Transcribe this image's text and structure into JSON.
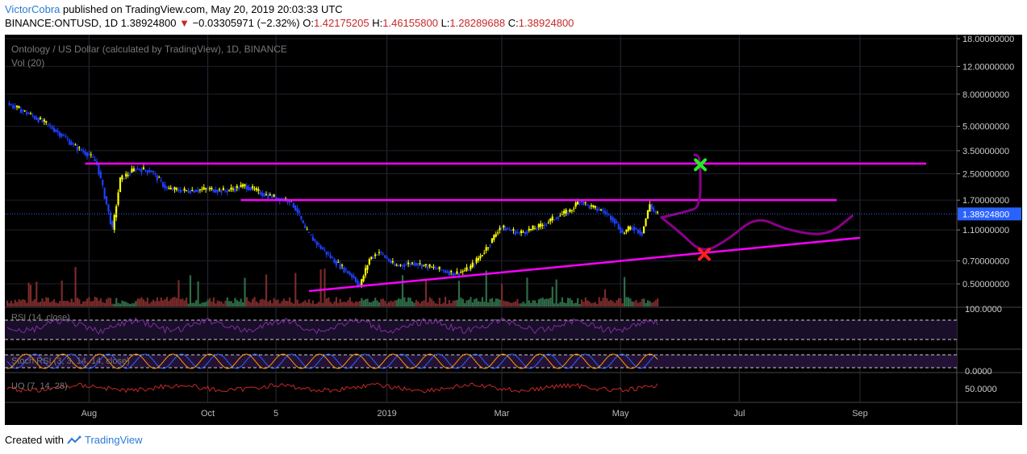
{
  "header": {
    "author": "VictorCobra",
    "published_text": "published on TradingView.com, May 20, 2019 20:03:33 UTC",
    "symbol_line": "BINANCE:ONTUSD, 1D",
    "last_price": "1.38924800",
    "change_icon": "down-triangle-icon",
    "change_text": "−0.03305971 (−2.32%)",
    "o_label": "O:",
    "o_value": "1.42175205",
    "h_label": "H:",
    "h_value": "1.46155800",
    "l_label": "L:",
    "l_value": "1.28289688",
    "c_label": "C:",
    "c_value": "1.38924800"
  },
  "footer": {
    "created_with": "Created with",
    "brand": "TradingView",
    "brand_icon": "tradingview-logo-icon"
  },
  "colors": {
    "background": "#000000",
    "bull": "#ffff00",
    "bear": "#1e40ff",
    "trendline": "#ff00ff",
    "projection": "#8b008b",
    "target_x": "#22ee22",
    "stop_x": "#ff2020",
    "rsi": "#7b2f9b",
    "uo": "#c62828",
    "price_badge": "#2962ff"
  },
  "chart_data": {
    "type": "candlestick",
    "title": "Ontology / US Dollar (calculated by TradingView), 1D, BINANCE",
    "subtitle": "Vol (20)",
    "y_scale": "log",
    "price_axis_labels": [
      "18.00000000",
      "12.00000000",
      "8.00000000",
      "5.00000000",
      "3.50000000",
      "2.50000000",
      "1.70000000",
      "1.10000000",
      "0.70000000",
      "0.50000000"
    ],
    "price_axis_values": [
      18.0,
      12.0,
      8.0,
      5.0,
      3.5,
      2.5,
      1.7,
      1.1,
      0.7,
      0.5
    ],
    "last_price_label": "1.38924800",
    "x_axis_labels": [
      "Aug",
      "Oct",
      "5",
      "2019",
      "Mar",
      "May",
      "Jul",
      "Sep"
    ],
    "x_axis_dates": [
      "2018-08-01",
      "2018-10-01",
      "2018-11-05",
      "2019-01-01",
      "2019-03-01",
      "2019-05-01",
      "2019-07-01",
      "2019-09-01"
    ],
    "price_path": [
      [
        "2018-06-20",
        7.0
      ],
      [
        "2018-07-01",
        6.0
      ],
      [
        "2018-07-10",
        5.2
      ],
      [
        "2018-07-18",
        4.4
      ],
      [
        "2018-07-25",
        3.7
      ],
      [
        "2018-08-01",
        3.3
      ],
      [
        "2018-08-05",
        2.9
      ],
      [
        "2018-08-10",
        1.6
      ],
      [
        "2018-08-13",
        1.1
      ],
      [
        "2018-08-17",
        2.3
      ],
      [
        "2018-08-25",
        2.7
      ],
      [
        "2018-09-02",
        2.6
      ],
      [
        "2018-09-10",
        2.0
      ],
      [
        "2018-09-20",
        1.95
      ],
      [
        "2018-10-01",
        2.0
      ],
      [
        "2018-10-10",
        1.95
      ],
      [
        "2018-10-20",
        2.1
      ],
      [
        "2018-10-30",
        1.85
      ],
      [
        "2018-11-06",
        1.75
      ],
      [
        "2018-11-12",
        1.7
      ],
      [
        "2018-11-16",
        1.45
      ],
      [
        "2018-11-20",
        1.1
      ],
      [
        "2018-11-26",
        0.9
      ],
      [
        "2018-12-05",
        0.7
      ],
      [
        "2018-12-15",
        0.55
      ],
      [
        "2018-12-18",
        0.48
      ],
      [
        "2018-12-23",
        0.72
      ],
      [
        "2018-12-28",
        0.8
      ],
      [
        "2019-01-05",
        0.65
      ],
      [
        "2019-01-15",
        0.68
      ],
      [
        "2019-01-25",
        0.63
      ],
      [
        "2019-02-05",
        0.58
      ],
      [
        "2019-02-12",
        0.62
      ],
      [
        "2019-02-18",
        0.75
      ],
      [
        "2019-02-24",
        0.95
      ],
      [
        "2019-02-28",
        1.15
      ],
      [
        "2019-03-10",
        1.05
      ],
      [
        "2019-03-20",
        1.15
      ],
      [
        "2019-03-30",
        1.35
      ],
      [
        "2019-04-05",
        1.45
      ],
      [
        "2019-04-10",
        1.7
      ],
      [
        "2019-04-15",
        1.55
      ],
      [
        "2019-04-22",
        1.45
      ],
      [
        "2019-04-27",
        1.3
      ],
      [
        "2019-05-02",
        1.05
      ],
      [
        "2019-05-07",
        1.15
      ],
      [
        "2019-05-12",
        1.05
      ],
      [
        "2019-05-16",
        1.6
      ],
      [
        "2019-05-18",
        1.45
      ],
      [
        "2019-05-20",
        1.39
      ]
    ],
    "horizontal_lines": [
      {
        "value": 2.9,
        "from": "2018-07-30",
        "to": "2019-10-05"
      },
      {
        "value": 1.7,
        "from": "2018-10-18",
        "to": "2019-08-20"
      }
    ],
    "support_line": {
      "from": [
        "2018-11-22",
        0.45
      ],
      "to": [
        "2019-09-01",
        0.98
      ]
    },
    "projection_paths": [
      [
        [
          "2019-05-22",
          1.32
        ],
        [
          "2019-06-05",
          1.45
        ],
        [
          "2019-06-11",
          1.55
        ],
        [
          "2019-06-11",
          2.9
        ],
        [
          "2019-06-10",
          3.25
        ],
        [
          "2019-06-08",
          3.3
        ]
      ],
      [
        [
          "2019-05-22",
          1.32
        ],
        [
          "2019-06-01",
          1.05
        ],
        [
          "2019-06-12",
          0.78
        ],
        [
          "2019-06-25",
          0.95
        ],
        [
          "2019-07-10",
          1.35
        ],
        [
          "2019-07-25",
          1.1
        ],
        [
          "2019-08-15",
          1.0
        ],
        [
          "2019-08-28",
          1.35
        ]
      ]
    ],
    "markers": [
      {
        "type": "target",
        "date": "2019-06-11",
        "value": 2.85
      },
      {
        "type": "stop",
        "date": "2019-06-13",
        "value": 0.77
      }
    ],
    "indicators": [
      {
        "name": "RSI (14, close)",
        "axis_label": "100.0000"
      },
      {
        "name": "Stoch RSI (3, 3, 14, 14, close)",
        "axis_label": "0.0000"
      },
      {
        "name": "UO (7, 14, 28)",
        "axis_label": "50.0000"
      }
    ],
    "grid": true
  }
}
